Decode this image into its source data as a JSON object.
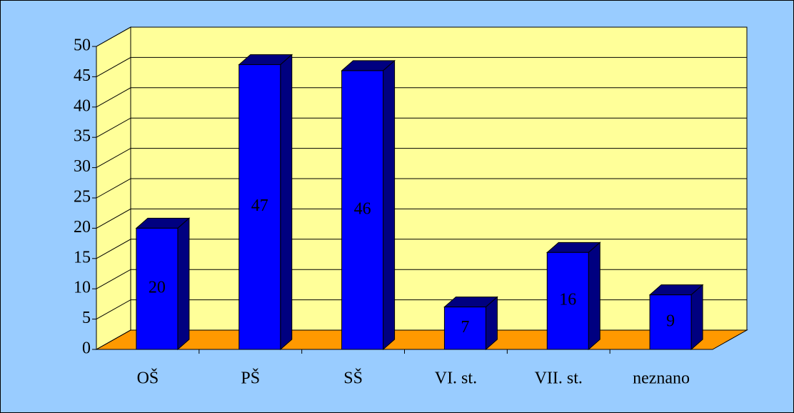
{
  "chart_data": {
    "type": "bar",
    "categories": [
      "OŠ",
      "PŠ",
      "SŠ",
      "VI. st.",
      "VII. st.",
      "neznano"
    ],
    "values": [
      20,
      47,
      46,
      7,
      16,
      9
    ],
    "color": "#0000ff",
    "side_color": "#000080",
    "wall_color": "#ffff99",
    "floor_color": "#ff9900",
    "background": "#99ccff",
    "ylim": [
      0,
      50
    ],
    "yticks": [
      0,
      5,
      10,
      15,
      20,
      25,
      30,
      35,
      40,
      45,
      50
    ],
    "grid": true
  }
}
